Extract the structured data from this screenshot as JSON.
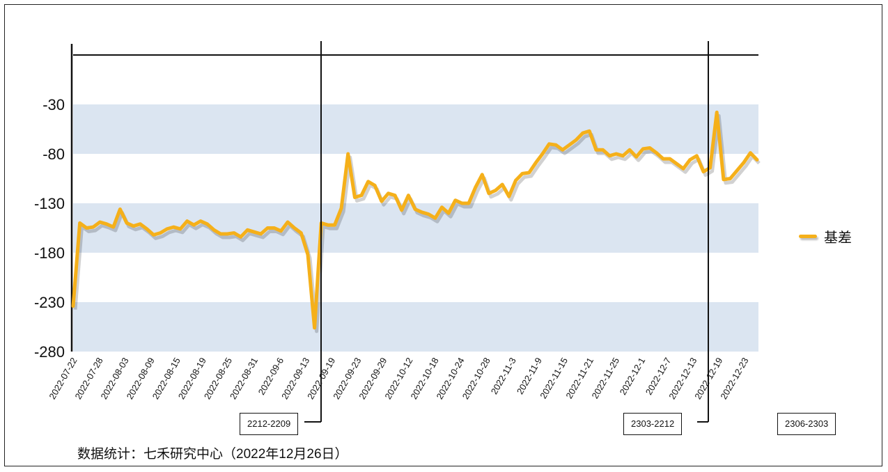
{
  "chart_data": {
    "type": "line",
    "ylim": [
      -280,
      20
    ],
    "y_ticks": [
      -30,
      -80,
      -130,
      -180,
      -230,
      -280
    ],
    "x_tick_labels": [
      "2022-07-22",
      "2022-07-28",
      "2022-08-03",
      "2022-08-09",
      "2022-08-15",
      "2022-08-19",
      "2022-08-25",
      "2022-08-31",
      "2022-09-6",
      "2022-09-13",
      "2022-09-19",
      "2022-09-23",
      "2022-09-29",
      "2022-10-12",
      "2022-10-18",
      "2022-10-24",
      "2022-10-28",
      "2022-11-3",
      "2022-11-9",
      "2022-11-15",
      "2022-11-21",
      "2022-11-25",
      "2022-12-1",
      "2022-12-7",
      "2022-12-13",
      "2022-12-19",
      "2022-12-23"
    ],
    "series": [
      {
        "name": "基差",
        "color": "#f5b01a",
        "values": [
          -234,
          -150,
          -155,
          -154,
          -149,
          -151,
          -154,
          -136,
          -150,
          -153,
          -151,
          -156,
          -162,
          -160,
          -156,
          -154,
          -156,
          -148,
          -152,
          -148,
          -151,
          -157,
          -161,
          -161,
          -160,
          -164,
          -157,
          -159,
          -161,
          -155,
          -155,
          -158,
          -149,
          -155,
          -160,
          -182,
          -256,
          -150,
          -152,
          -152,
          -135,
          -80,
          -124,
          -122,
          -108,
          -112,
          -128,
          -120,
          -122,
          -137,
          -122,
          -136,
          -139,
          -141,
          -145,
          -134,
          -140,
          -127,
          -130,
          -130,
          -114,
          -101,
          -120,
          -117,
          -111,
          -123,
          -107,
          -100,
          -99,
          -89,
          -80,
          -70,
          -71,
          -76,
          -71,
          -66,
          -59,
          -57,
          -76,
          -76,
          -82,
          -80,
          -82,
          -76,
          -83,
          -75,
          -74,
          -79,
          -85,
          -85,
          -90,
          -95,
          -86,
          -82,
          -98,
          -94,
          -38,
          -106,
          -105,
          -97,
          -89,
          -79,
          -86
        ]
      }
    ],
    "markers": [
      {
        "label": "2212-2209"
      },
      {
        "label": "2303-2212"
      },
      {
        "label": "2306-2303"
      }
    ],
    "legend_position": "right",
    "bands": true
  },
  "footnote": "数据统计：七禾研究中心（2022年12月26日）"
}
